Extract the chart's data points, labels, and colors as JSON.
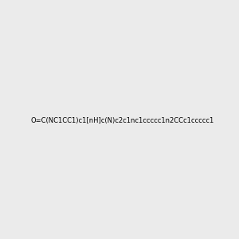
{
  "smiles": "O=C(NC1CC1)c1[nH]c(N)c2c1nc1ccccc1n2CCc1ccccc1",
  "title": "",
  "img_size": [
    300,
    300
  ],
  "background_color": "#ebebeb",
  "atom_color_map": {
    "N": "#0000FF",
    "O": "#FF0000",
    "C": "#000000"
  },
  "bond_color": "#000000"
}
